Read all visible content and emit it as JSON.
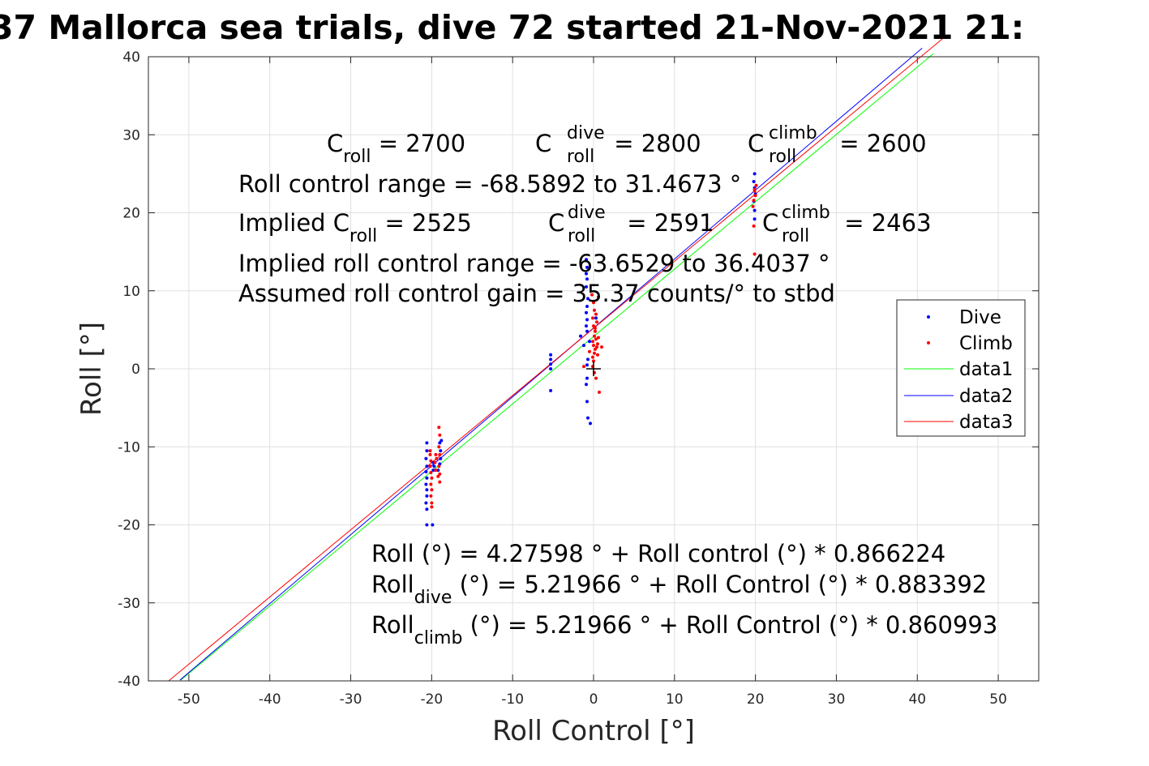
{
  "chart_data": {
    "type": "scatter",
    "title": "37 Mallorca sea trials, dive 72 started 21-Nov-2021 21:",
    "xlabel": "Roll Control [°]",
    "ylabel": "Roll [°]",
    "xlim": [
      -55,
      55
    ],
    "ylim": [
      -40,
      40
    ],
    "xticks": [
      -50,
      -40,
      -30,
      -20,
      -10,
      0,
      10,
      20,
      30,
      40,
      50
    ],
    "yticks": [
      -40,
      -30,
      -20,
      -10,
      0,
      10,
      20,
      30,
      40
    ],
    "grid": true,
    "legend_position": "right",
    "legend": [
      "Dive",
      "Climb",
      "data1",
      "data2",
      "data3"
    ],
    "colors": {
      "dive": "#0000ff",
      "climb": "#ff0000",
      "data1": "#00ff00",
      "data2": "#0000ff",
      "data3": "#ff0000",
      "grid": "#e0e0e0"
    },
    "series": [
      {
        "name": "Dive",
        "kind": "points",
        "points": [
          [
            -20.6,
            -9.5
          ],
          [
            -20.6,
            -10.5
          ],
          [
            -20.7,
            -11.5
          ],
          [
            -20.6,
            -12.5
          ],
          [
            -20.7,
            -13.2
          ],
          [
            -20.6,
            -14
          ],
          [
            -20.7,
            -14.8
          ],
          [
            -20.6,
            -15.5
          ],
          [
            -20.6,
            -16.3
          ],
          [
            -20.7,
            -17.2
          ],
          [
            -20.6,
            -18
          ],
          [
            -20.6,
            -20
          ],
          [
            -19.9,
            -20
          ],
          [
            -19.8,
            -12
          ],
          [
            -19.8,
            -13
          ],
          [
            -19.7,
            -12.5
          ],
          [
            -19.0,
            -9.5
          ],
          [
            -18.9,
            -10.5
          ],
          [
            -18.9,
            -11.5
          ],
          [
            -19.0,
            -12.2
          ],
          [
            -19.2,
            -13
          ],
          [
            -18.8,
            -9.2
          ],
          [
            -5.3,
            1.8
          ],
          [
            -5.3,
            1.2
          ],
          [
            -5.3,
            0.6
          ],
          [
            -5.3,
            0
          ],
          [
            -5.3,
            -2.8
          ],
          [
            -0.9,
            14
          ],
          [
            -0.8,
            13
          ],
          [
            -0.9,
            12.2
          ],
          [
            -0.8,
            11.5
          ],
          [
            -0.9,
            10.5
          ],
          [
            -0.7,
            9
          ],
          [
            -0.8,
            8
          ],
          [
            -0.9,
            7.2
          ],
          [
            -0.8,
            6.3
          ],
          [
            -0.9,
            5.5
          ],
          [
            -0.8,
            4.8
          ],
          [
            -0.5,
            3.5
          ],
          [
            -0.7,
            1.2
          ],
          [
            -0.8,
            0.5
          ],
          [
            -0.8,
            -1.2
          ],
          [
            -0.9,
            -2
          ],
          [
            -0.8,
            -4.2
          ],
          [
            -0.7,
            -6.3
          ],
          [
            -0.4,
            -7
          ],
          [
            -1.6,
            4.2
          ],
          [
            -1.2,
            3.0
          ],
          [
            0.3,
            6.5
          ],
          [
            19.9,
            25
          ],
          [
            19.8,
            24
          ],
          [
            19.9,
            23.2
          ],
          [
            20.0,
            22.4
          ],
          [
            19.8,
            21.5
          ],
          [
            19.9,
            20.3
          ],
          [
            19.9,
            19.2
          ]
        ]
      },
      {
        "name": "Climb",
        "kind": "points",
        "points": [
          [
            -20.2,
            -11
          ],
          [
            -20.1,
            -11.8
          ],
          [
            -20.2,
            -12.5
          ],
          [
            -20.1,
            -13.3
          ],
          [
            -20.0,
            -14
          ],
          [
            -20.1,
            -14.8
          ],
          [
            -20.0,
            -15.5
          ],
          [
            -20.1,
            -16.3
          ],
          [
            -20.0,
            -17.2
          ],
          [
            -20.0,
            -17.7
          ],
          [
            -20.2,
            -10.5
          ],
          [
            -19.5,
            -11
          ],
          [
            -19.6,
            -12
          ],
          [
            -19.5,
            -13
          ],
          [
            -19.4,
            -11.5
          ],
          [
            -19.1,
            -7.5
          ],
          [
            -19.0,
            -8.5
          ],
          [
            -19.1,
            -10
          ],
          [
            -19.0,
            -11
          ],
          [
            -19.1,
            -12.5
          ],
          [
            -19.0,
            -13.5
          ],
          [
            -19.0,
            -14.5
          ],
          [
            -19.2,
            -13.8
          ],
          [
            -0.2,
            9.5
          ],
          [
            0.0,
            8.5
          ],
          [
            0.1,
            7.5
          ],
          [
            -0.1,
            6.5
          ],
          [
            0.0,
            5.5
          ],
          [
            0.2,
            4.8
          ],
          [
            0.1,
            4.2
          ],
          [
            -0.1,
            3.5
          ],
          [
            0.0,
            3.0
          ],
          [
            0.2,
            2.5
          ],
          [
            0.1,
            2.0
          ],
          [
            -0.1,
            1.5
          ],
          [
            0.0,
            1.0
          ],
          [
            -0.1,
            0.3
          ],
          [
            0.1,
            -0.5
          ],
          [
            0.3,
            -1.2
          ],
          [
            0.2,
            5.2
          ],
          [
            0.3,
            3.8
          ],
          [
            0.4,
            2.8
          ],
          [
            0.5,
            3.2
          ],
          [
            0.6,
            4.0
          ],
          [
            0.5,
            1.8
          ],
          [
            0.4,
            6.0
          ],
          [
            0.7,
            -3.0
          ],
          [
            1.0,
            2.8
          ],
          [
            -1.2,
            0.3
          ],
          [
            -0.5,
            2.2
          ],
          [
            0.6,
            9.2
          ],
          [
            0.3,
            7.0
          ],
          [
            19.9,
            23
          ],
          [
            20.0,
            22.2
          ],
          [
            19.8,
            21.6
          ],
          [
            19.9,
            22.8
          ],
          [
            19.7,
            20.8
          ],
          [
            19.8,
            18.3
          ],
          [
            19.9,
            14.7
          ],
          [
            20.1,
            23.5
          ]
        ]
      },
      {
        "name": "data1",
        "kind": "line",
        "x": [
          -51,
          42
        ],
        "y": [
          -39.9,
          40.4
        ]
      },
      {
        "name": "data2",
        "kind": "line",
        "x": [
          -51.1,
          40.6
        ],
        "y": [
          -39.9,
          41.1
        ]
      },
      {
        "name": "data3",
        "kind": "line",
        "x": [
          -52.5,
          43.1
        ],
        "y": [
          -40,
          42.3
        ]
      }
    ],
    "markers": [
      {
        "symbol": "+",
        "x": 0,
        "y": 0,
        "color": "#000000"
      }
    ],
    "annotations_top": {
      "c_base": "C",
      "c_sub": "roll",
      "c_val": " = 2700",
      "cd_base": "C",
      "cd_sup": "dive",
      "cd_sub": "roll",
      "cd_val": " = 2800",
      "cc_base": "C",
      "cc_sup": "climb",
      "cc_sub": "roll",
      "cc_val": " = 2600",
      "range": "Roll control range = -68.5892 to 31.4673 °",
      "implied_base": "Implied C",
      "implied_sub": "roll",
      "implied_val": " = 2525",
      "icd_base": "C",
      "icd_sup": "dive",
      "icd_sub": "roll",
      "icd_val": " = 2591",
      "icc_base": "C",
      "icc_sup": "climb",
      "icc_sub": "roll",
      "icc_val": " = 2463",
      "implied_range": "Implied roll control range = -63.6529 to 36.4037 °",
      "gain": "Assumed roll control gain = 35.37 counts/° to stbd"
    },
    "annotations_bottom": {
      "fit": "Roll (°) = 4.27598 ° + Roll control (°) * 0.866224",
      "dive_base": "Roll",
      "dive_sub": "dive",
      "dive_rest": " (°) = 5.21966 ° + Roll Control (°) * 0.883392",
      "climb_base": "Roll",
      "climb_sub": "climb",
      "climb_rest": " (°) = 5.21966 ° + Roll Control (°) * 0.860993"
    }
  }
}
